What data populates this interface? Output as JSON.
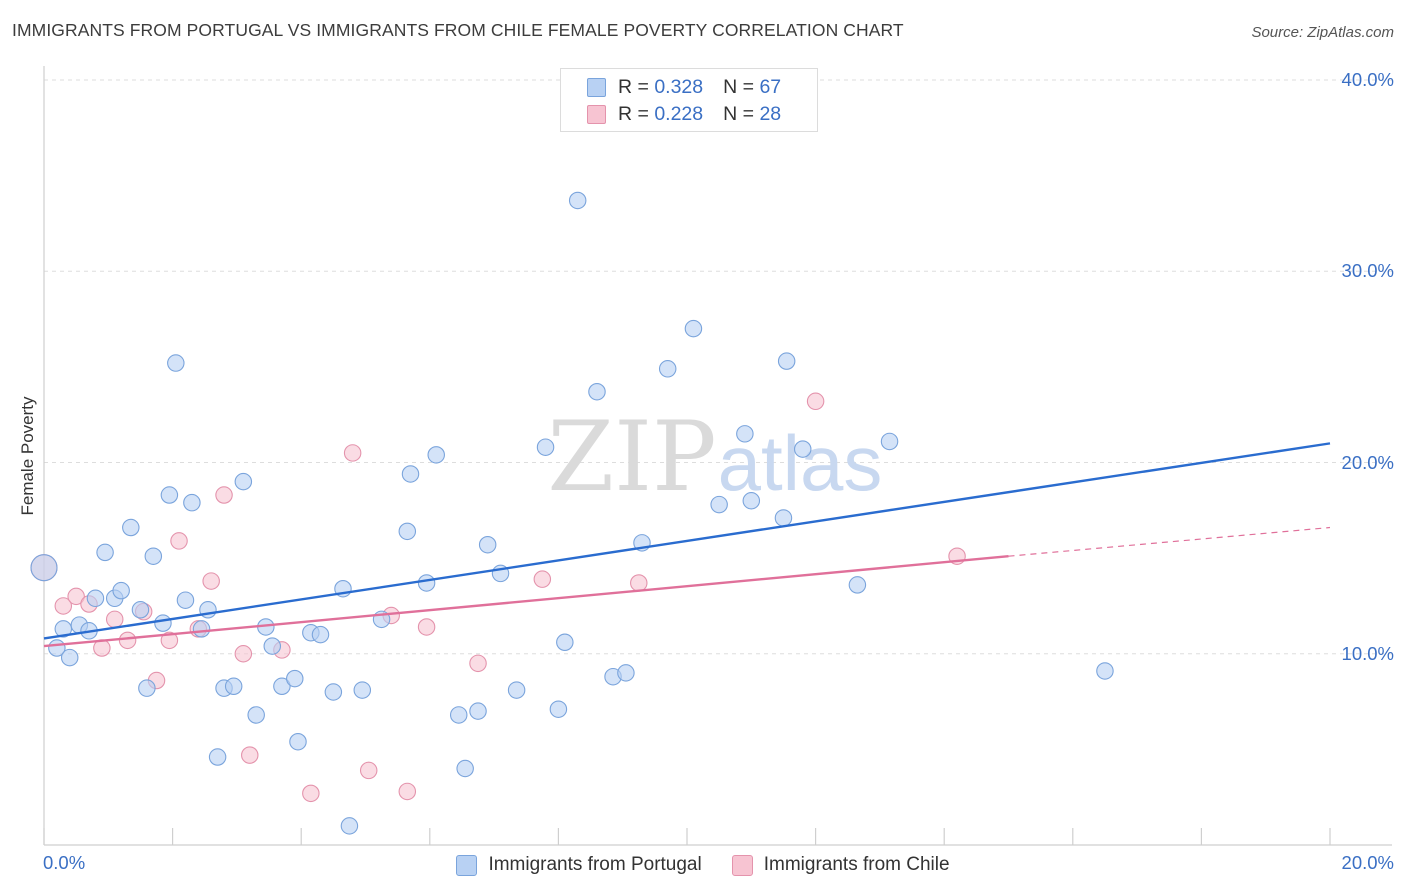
{
  "title": "IMMIGRANTS FROM PORTUGAL VS IMMIGRANTS FROM CHILE FEMALE POVERTY CORRELATION CHART",
  "source": "Source: ZipAtlas.com",
  "watermark": {
    "zip": "ZIP",
    "atlas": "atlas"
  },
  "legend": {
    "r_label": "R =",
    "n_label": "N =",
    "rows": [
      {
        "r": "0.328",
        "n": "67"
      },
      {
        "r": "0.228",
        "n": "28"
      }
    ]
  },
  "colors": {
    "portugal_fill": "#b8d1f3",
    "portugal_stroke": "#7aa4dc",
    "portugal_line": "#2a6ccf",
    "chile_fill": "#f7c4d2",
    "chile_stroke": "#e493ac",
    "chile_line": "#e0709a",
    "axis_text": "#3a6fc4",
    "grid": "#dddddd"
  },
  "chart_data": {
    "type": "scatter",
    "title": "IMMIGRANTS FROM PORTUGAL VS IMMIGRANTS FROM CHILE FEMALE POVERTY CORRELATION CHART",
    "xlabel": "",
    "ylabel": "Female Poverty",
    "xlim": [
      0,
      20
    ],
    "ylim": [
      0,
      40
    ],
    "x_tick_labels": [
      "0.0%",
      "20.0%"
    ],
    "y_ticks": [
      10,
      20,
      30,
      40
    ],
    "y_tick_labels": [
      "10.0%",
      "20.0%",
      "30.0%",
      "40.0%"
    ],
    "grid": true,
    "legend_position": "top-center",
    "series": [
      {
        "name": "Immigrants from Portugal",
        "r": 0.328,
        "n": 67,
        "trend": {
          "x0": 0,
          "y0": 10.8,
          "x1": 20,
          "y1": 21.0
        },
        "points": [
          [
            0.0,
            14.5
          ],
          [
            0.2,
            10.3
          ],
          [
            0.3,
            11.3
          ],
          [
            0.4,
            9.8
          ],
          [
            0.55,
            11.5
          ],
          [
            0.7,
            11.2
          ],
          [
            0.8,
            12.9
          ],
          [
            0.95,
            15.3
          ],
          [
            1.1,
            12.9
          ],
          [
            1.2,
            13.3
          ],
          [
            1.35,
            16.6
          ],
          [
            1.5,
            12.3
          ],
          [
            1.6,
            8.2
          ],
          [
            1.7,
            15.1
          ],
          [
            1.85,
            11.6
          ],
          [
            1.95,
            18.3
          ],
          [
            2.05,
            25.2
          ],
          [
            2.2,
            12.8
          ],
          [
            2.3,
            17.9
          ],
          [
            2.45,
            11.3
          ],
          [
            2.55,
            12.3
          ],
          [
            2.7,
            4.6
          ],
          [
            2.8,
            8.2
          ],
          [
            2.95,
            8.3
          ],
          [
            3.1,
            19.0
          ],
          [
            3.3,
            6.8
          ],
          [
            3.45,
            11.4
          ],
          [
            3.55,
            10.4
          ],
          [
            3.7,
            8.3
          ],
          [
            3.9,
            8.7
          ],
          [
            3.95,
            5.4
          ],
          [
            4.15,
            11.1
          ],
          [
            4.3,
            11.0
          ],
          [
            4.5,
            8.0
          ],
          [
            4.65,
            13.4
          ],
          [
            4.75,
            1.0
          ],
          [
            4.95,
            8.1
          ],
          [
            5.25,
            11.8
          ],
          [
            5.65,
            16.4
          ],
          [
            5.7,
            19.4
          ],
          [
            5.95,
            13.7
          ],
          [
            6.1,
            20.4
          ],
          [
            6.45,
            6.8
          ],
          [
            6.55,
            4.0
          ],
          [
            6.75,
            7.0
          ],
          [
            6.9,
            15.7
          ],
          [
            7.1,
            14.2
          ],
          [
            7.35,
            8.1
          ],
          [
            7.8,
            20.8
          ],
          [
            8.0,
            7.1
          ],
          [
            8.1,
            10.6
          ],
          [
            8.3,
            33.7
          ],
          [
            8.6,
            23.7
          ],
          [
            8.85,
            8.8
          ],
          [
            9.05,
            9.0
          ],
          [
            9.3,
            15.8
          ],
          [
            9.7,
            24.9
          ],
          [
            10.1,
            27.0
          ],
          [
            10.5,
            17.8
          ],
          [
            10.9,
            21.5
          ],
          [
            11.0,
            18.0
          ],
          [
            11.5,
            17.1
          ],
          [
            11.55,
            25.3
          ],
          [
            11.8,
            20.7
          ],
          [
            12.65,
            13.6
          ],
          [
            13.15,
            21.1
          ],
          [
            16.5,
            9.1
          ]
        ]
      },
      {
        "name": "Immigrants from Chile",
        "r": 0.228,
        "n": 28,
        "trend": {
          "x0": 0,
          "y0": 10.4,
          "x1": 15.0,
          "y1": 15.1
        },
        "dashed_extension": {
          "x0": 15.0,
          "y0": 15.1,
          "x1": 20,
          "y1": 16.6
        },
        "points": [
          [
            0.0,
            14.5
          ],
          [
            0.3,
            12.5
          ],
          [
            0.5,
            13.0
          ],
          [
            0.7,
            12.6
          ],
          [
            0.9,
            10.3
          ],
          [
            1.1,
            11.8
          ],
          [
            1.3,
            10.7
          ],
          [
            1.55,
            12.2
          ],
          [
            1.75,
            8.6
          ],
          [
            1.95,
            10.7
          ],
          [
            2.1,
            15.9
          ],
          [
            2.4,
            11.3
          ],
          [
            2.6,
            13.8
          ],
          [
            2.8,
            18.3
          ],
          [
            3.1,
            10.0
          ],
          [
            3.2,
            4.7
          ],
          [
            3.7,
            10.2
          ],
          [
            4.15,
            2.7
          ],
          [
            4.8,
            20.5
          ],
          [
            5.05,
            3.9
          ],
          [
            5.4,
            12.0
          ],
          [
            5.65,
            2.8
          ],
          [
            5.95,
            11.4
          ],
          [
            6.75,
            9.5
          ],
          [
            7.75,
            13.9
          ],
          [
            9.25,
            13.7
          ],
          [
            12.0,
            23.2
          ],
          [
            14.2,
            15.1
          ]
        ]
      }
    ]
  },
  "bottom_legend": [
    "Immigrants from Portugal",
    "Immigrants from Chile"
  ]
}
